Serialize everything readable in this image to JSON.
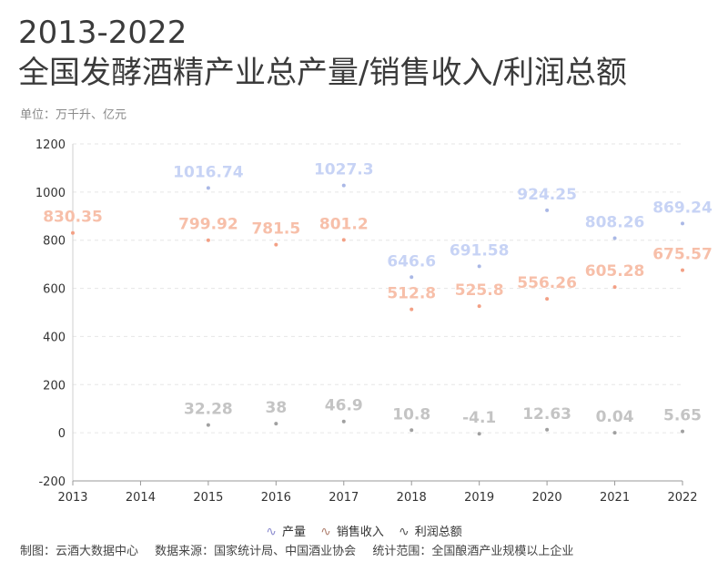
{
  "title_line1": "2013-2022",
  "title_line2": "全国发酵酒精产业总产量/销售收入/利润总额",
  "subtitle": "单位：万千升、亿元",
  "footer": {
    "maker": "制图：云酒大数据中心",
    "source": "数据来源：国家统计局、中国酒业协会",
    "scope": "统计范围：全国酿酒产业规模以上企业"
  },
  "chart_data": {
    "type": "scatter",
    "categories": [
      "2013",
      "2014",
      "2015",
      "2016",
      "2017",
      "2018",
      "2019",
      "2020",
      "2021",
      "2022"
    ],
    "ylim": [
      -200,
      1200
    ],
    "yticks": [
      "-200",
      "0",
      "200",
      "400",
      "600",
      "800",
      "1000",
      "1200"
    ],
    "grid": true,
    "legend_position": "bottom",
    "series": [
      {
        "name": "产量",
        "color": "#c7d3f5",
        "point_color": "#aab8e6",
        "values": [
          null,
          null,
          1016.74,
          null,
          1027.3,
          646.6,
          691.58,
          924.25,
          808.26,
          869.24
        ],
        "labels": [
          "",
          "",
          "1016.74",
          "",
          "1027.3",
          "646.6",
          "691.58",
          "924.25",
          "808.26",
          "869.24"
        ]
      },
      {
        "name": "销售收入",
        "color": "#f7bfa9",
        "point_color": "#f3a085",
        "values": [
          830.35,
          null,
          799.92,
          781.5,
          801.2,
          512.8,
          525.8,
          556.26,
          605.28,
          675.57
        ],
        "labels": [
          "830.35",
          "",
          "799.92",
          "781.5",
          "801.2",
          "512.8",
          "525.8",
          "556.26",
          "605.28",
          "675.57"
        ]
      },
      {
        "name": "利润总额",
        "color": "#c4c4c4",
        "point_color": "#a0a0a0",
        "values": [
          null,
          null,
          32.28,
          38,
          46.9,
          10.8,
          -4.1,
          12.63,
          0.04,
          5.65
        ],
        "labels": [
          "",
          "",
          "32.28",
          "38",
          "46.9",
          "10.8",
          "-4.1",
          "12.63",
          "0.04",
          "5.65"
        ]
      }
    ]
  },
  "legend_icons": [
    "wave-icon",
    "wave-icon",
    "wave-icon"
  ]
}
